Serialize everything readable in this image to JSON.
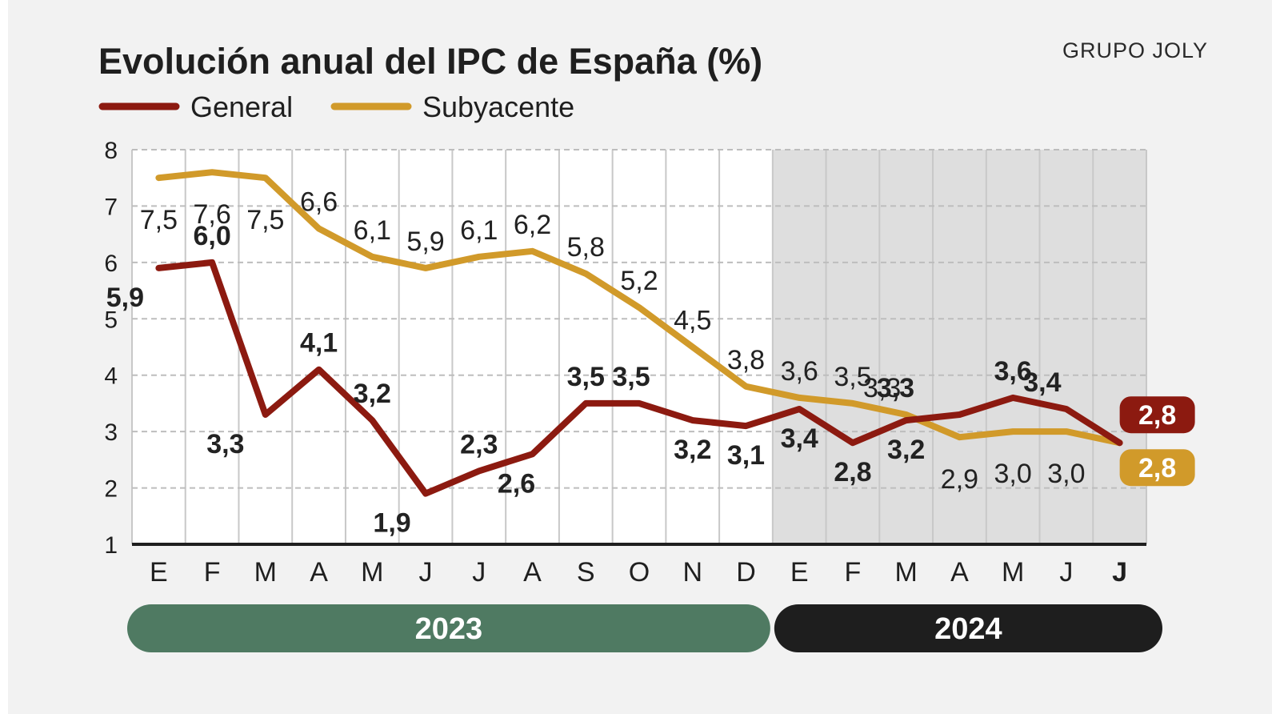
{
  "colors": {
    "general": "#8c1a10",
    "subyacente": "#d19a2a",
    "year2023": "#4f7a62",
    "year2024": "#1e1e1e",
    "shade": "#dedede"
  },
  "header": {
    "title": "Evolución anual del IPC de España (%)",
    "source": "GRUPO JOLY"
  },
  "chart_data": {
    "type": "line",
    "title": "Evolución anual del IPC de España (%)",
    "categories": [
      "E",
      "F",
      "M",
      "A",
      "M",
      "J",
      "J",
      "A",
      "S",
      "O",
      "N",
      "D",
      "E",
      "F",
      "M",
      "A",
      "M",
      "J",
      "J"
    ],
    "ylim": [
      1,
      8
    ],
    "yticks": [
      "1",
      "2",
      "3",
      "4",
      "5",
      "6",
      "7",
      "8"
    ],
    "grid": true,
    "legend_position": "top-left",
    "series": [
      {
        "name": "General",
        "values": [
          5.9,
          6.0,
          3.3,
          4.1,
          3.2,
          1.9,
          2.3,
          2.6,
          3.5,
          3.5,
          3.2,
          3.1,
          3.4,
          2.8,
          3.2,
          3.3,
          3.6,
          3.4,
          2.8
        ],
        "labels": [
          "5,9",
          "6,0",
          "3,3",
          "4,1",
          "3,2",
          "1,9",
          "2,3",
          "2,6",
          "3,5",
          "3,5",
          "3,2",
          "3,1",
          "3,4",
          "2,8",
          "3,2",
          "3,3",
          "3,6",
          "3,4",
          "2,8"
        ]
      },
      {
        "name": "Subyacente",
        "values": [
          7.5,
          7.6,
          7.5,
          6.6,
          6.1,
          5.9,
          6.1,
          6.2,
          5.8,
          5.2,
          4.5,
          3.8,
          3.6,
          3.5,
          3.3,
          2.9,
          3.0,
          3.0,
          2.8
        ],
        "labels": [
          "7,5",
          "7,6",
          "7,5",
          "6,6",
          "6,1",
          "5,9",
          "6,1",
          "6,2",
          "5,8",
          "5,2",
          "4,5",
          "3,8",
          "3,6",
          "3,5",
          "3,3",
          "2,9",
          "3,0",
          "3,0",
          "2,8"
        ]
      }
    ],
    "years": [
      {
        "label": "2023",
        "from": 0,
        "to": 11
      },
      {
        "label": "2024",
        "from": 12,
        "to": 18
      }
    ],
    "shaded_from_index": 12
  }
}
